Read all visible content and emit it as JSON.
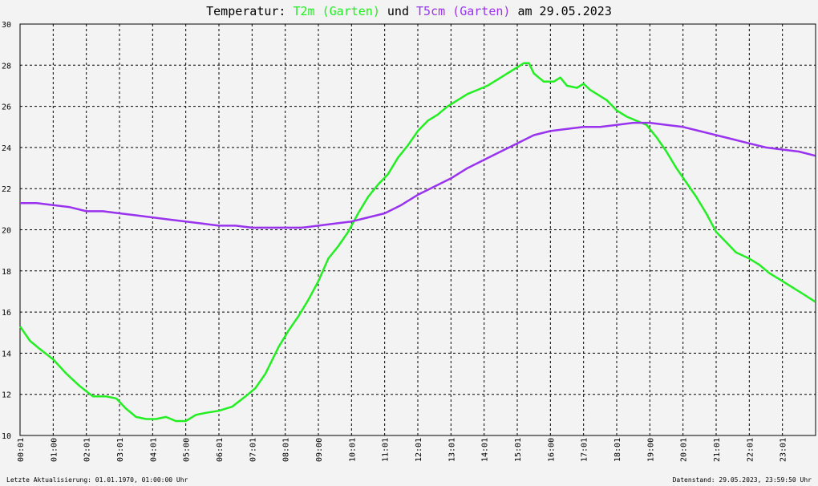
{
  "title": {
    "prefix": "Temperatur:",
    "series1": "T2m (Garten)",
    "middle": "und",
    "series2": "T5cm (Garten)",
    "suffix": "am 29.05.2023"
  },
  "footer": {
    "left": "Letzte Aktualisierung: 01.01.1970, 01:00:00 Uhr",
    "right": "Datenstand: 29.05.2023, 23:59:50 Uhr"
  },
  "colors": {
    "t2m": "#22ee22",
    "t5cm": "#9933ee",
    "grid": "#000000",
    "background": "#f3f3f3"
  },
  "chart_data": {
    "type": "line",
    "title": "Temperatur: T2m (Garten) und T5cm (Garten) am 29.05.2023",
    "xlabel": "",
    "ylabel": "",
    "xlim": [
      0,
      24
    ],
    "ylim": [
      10,
      30
    ],
    "grid": true,
    "y_ticks": [
      "10",
      "12",
      "14",
      "16",
      "18",
      "20",
      "22",
      "24",
      "26",
      "28",
      "30"
    ],
    "x_ticks": [
      "00:01",
      "01:00",
      "02:01",
      "03:01",
      "04:01",
      "05:00",
      "06:01",
      "07:01",
      "08:01",
      "09:00",
      "10:01",
      "11:01",
      "12:01",
      "13:01",
      "14:01",
      "15:01",
      "16:00",
      "17:01",
      "18:01",
      "19:00",
      "20:01",
      "21:01",
      "22:01",
      "23:01"
    ],
    "series": [
      {
        "name": "T2m (Garten)",
        "color": "#22ee22",
        "x": [
          0,
          0.3,
          0.6,
          1.0,
          1.4,
          1.8,
          2.2,
          2.6,
          2.9,
          3.2,
          3.5,
          3.8,
          4.1,
          4.4,
          4.7,
          5.0,
          5.3,
          5.6,
          6.0,
          6.4,
          6.8,
          7.1,
          7.4,
          7.8,
          8.1,
          8.4,
          8.7,
          9.0,
          9.3,
          9.6,
          9.9,
          10.2,
          10.5,
          10.8,
          11.1,
          11.4,
          11.7,
          12.0,
          12.3,
          12.6,
          12.9,
          13.2,
          13.5,
          13.8,
          14.1,
          14.4,
          14.7,
          15.0,
          15.2,
          15.35,
          15.5,
          15.8,
          16.1,
          16.3,
          16.5,
          16.8,
          17.0,
          17.2,
          17.4,
          17.7,
          18.0,
          18.3,
          18.6,
          18.9,
          19.2,
          19.5,
          19.8,
          20.1,
          20.4,
          20.7,
          21.0,
          21.3,
          21.6,
          22.0,
          22.3,
          22.6,
          23.0,
          23.3,
          23.6,
          23.99
        ],
        "y": [
          15.3,
          14.6,
          14.2,
          13.7,
          13.0,
          12.4,
          11.9,
          11.9,
          11.8,
          11.3,
          10.9,
          10.8,
          10.8,
          10.9,
          10.7,
          10.7,
          11.0,
          11.1,
          11.2,
          11.4,
          11.9,
          12.3,
          13.0,
          14.3,
          15.1,
          15.8,
          16.6,
          17.5,
          18.6,
          19.2,
          19.9,
          20.8,
          21.6,
          22.2,
          22.7,
          23.5,
          24.1,
          24.8,
          25.3,
          25.6,
          26.0,
          26.3,
          26.6,
          26.8,
          27.0,
          27.3,
          27.6,
          27.9,
          28.1,
          28.1,
          27.6,
          27.2,
          27.2,
          27.4,
          27.0,
          26.9,
          27.1,
          26.8,
          26.6,
          26.3,
          25.8,
          25.5,
          25.3,
          25.1,
          24.5,
          23.8,
          23.0,
          22.3,
          21.6,
          20.8,
          19.9,
          19.4,
          18.9,
          18.6,
          18.3,
          17.9,
          17.5,
          17.2,
          16.9,
          16.5
        ]
      },
      {
        "name": "T5cm (Garten)",
        "color": "#9933ee",
        "x": [
          0,
          0.5,
          1.0,
          1.5,
          2.0,
          2.5,
          3.0,
          3.5,
          4.0,
          4.5,
          5.0,
          5.5,
          6.0,
          6.5,
          7.0,
          7.5,
          8.0,
          8.5,
          9.0,
          9.5,
          10.0,
          10.5,
          11.0,
          11.5,
          12.0,
          12.5,
          13.0,
          13.5,
          14.0,
          14.5,
          15.0,
          15.5,
          16.0,
          16.5,
          17.0,
          17.5,
          18.0,
          18.5,
          19.0,
          19.5,
          20.0,
          20.5,
          21.0,
          21.5,
          22.0,
          22.5,
          23.0,
          23.5,
          23.99
        ],
        "y": [
          21.3,
          21.3,
          21.2,
          21.1,
          20.9,
          20.9,
          20.8,
          20.7,
          20.6,
          20.5,
          20.4,
          20.3,
          20.2,
          20.2,
          20.1,
          20.1,
          20.1,
          20.1,
          20.2,
          20.3,
          20.4,
          20.6,
          20.8,
          21.2,
          21.7,
          22.1,
          22.5,
          23.0,
          23.4,
          23.8,
          24.2,
          24.6,
          24.8,
          24.9,
          25.0,
          25.0,
          25.1,
          25.2,
          25.2,
          25.1,
          25.0,
          24.8,
          24.6,
          24.4,
          24.2,
          24.0,
          23.9,
          23.8,
          23.6
        ]
      }
    ]
  }
}
